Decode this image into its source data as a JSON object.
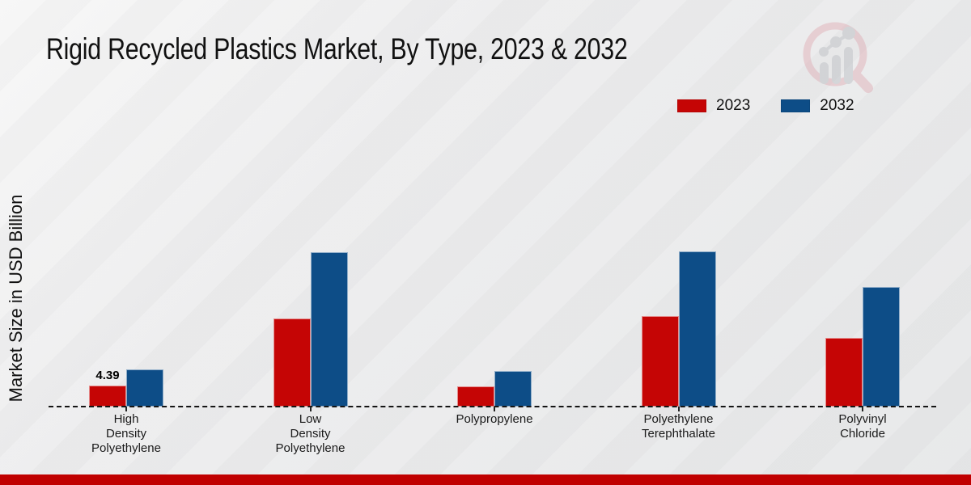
{
  "title": "Rigid Recycled Plastics Market, By Type, 2023 & 2032",
  "ylabel": "Market Size in USD Billion",
  "legend": {
    "items": [
      {
        "label": "2023",
        "color": "#c50505"
      },
      {
        "label": "2032",
        "color": "#0d4d87"
      }
    ]
  },
  "logo_icon": "magnifier-bar-chart-watermark",
  "colors": {
    "bar_2023": "#c50505",
    "bar_2032": "#0d4d87",
    "footer": "#c00000",
    "baseline": "#151515"
  },
  "chart_data": {
    "type": "bar",
    "title": "Rigid Recycled Plastics Market, By Type, 2023 & 2032",
    "ylabel": "Market Size in USD Billion",
    "xlabel": "",
    "grid": false,
    "baseline_style": "dashed",
    "legend_position": "top-right",
    "ylim": [
      0,
      36
    ],
    "categories": [
      "High Density Polyethylene",
      "Low Density Polyethylene",
      "Polypropylene",
      "Polyethylene Terephthalate",
      "Polyvinyl Chloride"
    ],
    "category_label_lines": [
      [
        "High",
        "Density",
        "Polyethylene"
      ],
      [
        "Low",
        "Density",
        "Polyethylene"
      ],
      [
        "Polypropylene"
      ],
      [
        "Polyethylene",
        "Terephthalate"
      ],
      [
        "Polyvinyl",
        "Chloride"
      ]
    ],
    "series": [
      {
        "name": "2023",
        "color": "#c50505",
        "values": [
          4.39,
          18.4,
          4.2,
          18.9,
          14.4
        ]
      },
      {
        "name": "2032",
        "color": "#0d4d87",
        "values": [
          7.8,
          32.3,
          7.4,
          32.4,
          25.0
        ]
      }
    ],
    "data_labels": [
      {
        "series": "2023",
        "category": "High Density Polyethylene",
        "text": "4.39"
      }
    ]
  }
}
